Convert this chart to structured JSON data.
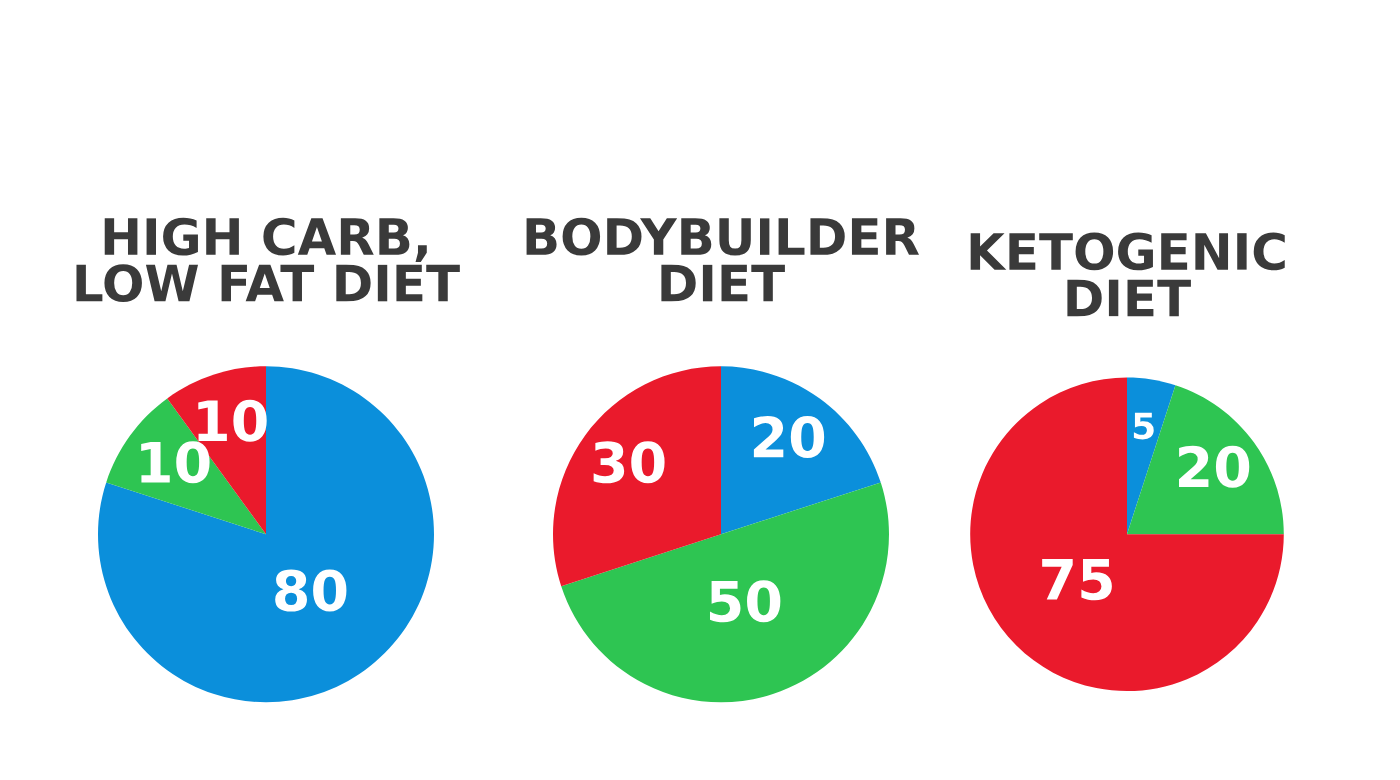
{
  "chart_data": [
    {
      "type": "pie",
      "title": "HIGH CARB,\nLOW FAT DIET",
      "categories": [
        null,
        null,
        null
      ],
      "values": [
        80,
        10,
        10
      ],
      "colors": [
        "#0b8fdb",
        "#2ec552",
        "#ea1a2c"
      ],
      "data_labels": true
    },
    {
      "type": "pie",
      "title": "BODYBUILDER\nDIET",
      "categories": [
        null,
        null,
        null
      ],
      "values": [
        20,
        50,
        30
      ],
      "colors": [
        "#0b8fdb",
        "#2ec552",
        "#ea1a2c"
      ],
      "data_labels": true
    },
    {
      "type": "pie",
      "title": "KETOGENIC\nDIET",
      "categories": [
        null,
        null,
        null
      ],
      "values": [
        5,
        20,
        75
      ],
      "colors": [
        "#0b8fdb",
        "#2ec552",
        "#ea1a2c"
      ],
      "data_labels": true
    }
  ]
}
